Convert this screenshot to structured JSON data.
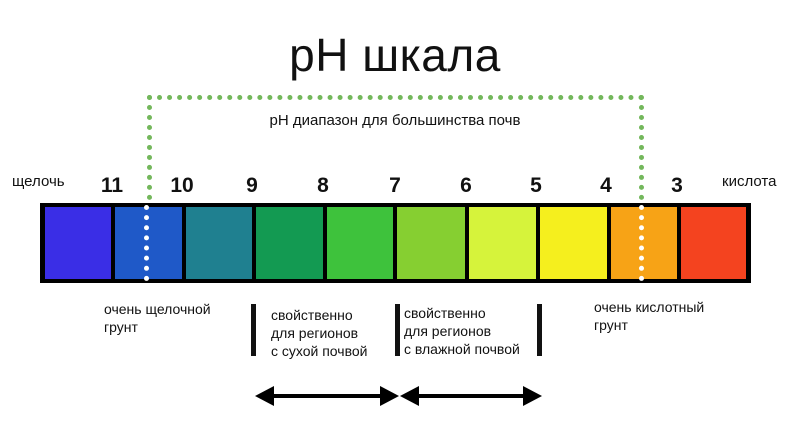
{
  "title": "pH шкала",
  "range_label": "pH диапазон для большинства почв",
  "left_end_label": "щелочь",
  "right_end_label": "кислота",
  "scale_numbers": [
    "11",
    "10",
    "9",
    "8",
    "7",
    "6",
    "5",
    "4",
    "3"
  ],
  "scale_colors": [
    "#3a2ee6",
    "#1f59c8",
    "#1f8090",
    "#139a52",
    "#3ec23c",
    "#86cf31",
    "#d6f33b",
    "#f5ef1e",
    "#f7a316",
    "#f4431f"
  ],
  "range_outline_color": "#73b75b",
  "descriptions": {
    "very_alkaline": [
      "очень щелочной",
      "грунт"
    ],
    "dry": [
      "свойственно",
      "для регионов",
      "с сухой почвой"
    ],
    "wet": [
      "свойственно",
      "для регионов",
      "с влажной почвой"
    ],
    "very_acidic": [
      "очень кислотный",
      "грунт"
    ]
  }
}
